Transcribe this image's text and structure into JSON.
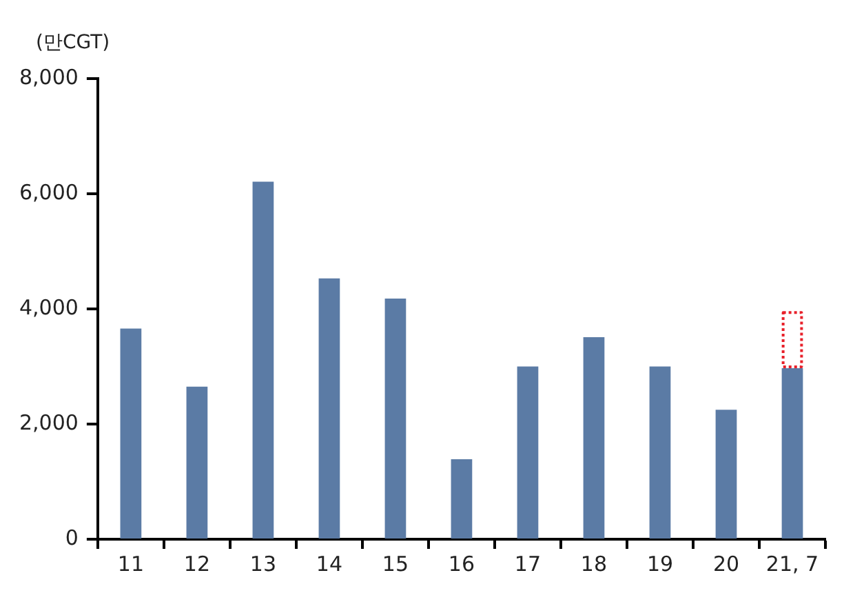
{
  "chart_data": {
    "type": "bar",
    "ylabel": "(만CGT)",
    "stacked": true,
    "categories": [
      "11",
      "12",
      "13",
      "14",
      "15",
      "16",
      "17",
      "18",
      "19",
      "20",
      "21, 7"
    ],
    "series": [
      {
        "color": "#5b7ba5",
        "values": [
          3660,
          2650,
          6210,
          4530,
          4180,
          1390,
          3000,
          3510,
          3000,
          2250,
          2970
        ]
      },
      {
        "color": "#e8202a",
        "line_style": "dotted",
        "values": [
          null,
          null,
          null,
          null,
          null,
          null,
          null,
          null,
          null,
          null,
          990
        ]
      }
    ],
    "ylim": [
      0,
      8000
    ],
    "yticks": [
      {
        "value": 0,
        "label": "0"
      },
      {
        "value": 2000,
        "label": "2,000"
      },
      {
        "value": 4000,
        "label": "4,000"
      },
      {
        "value": 6000,
        "label": "6,000"
      },
      {
        "value": 8000,
        "label": "8,000"
      }
    ],
    "grid": false,
    "legend": false
  }
}
